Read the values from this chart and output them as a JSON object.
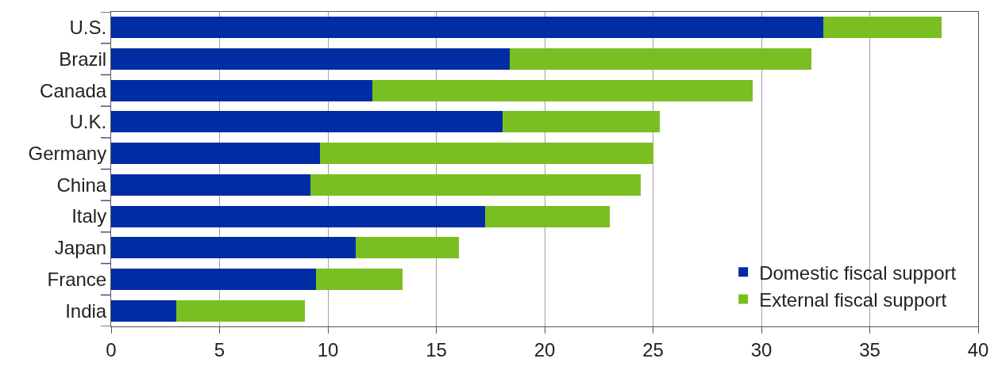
{
  "chart_data": {
    "type": "bar",
    "orientation": "horizontal",
    "stacked": true,
    "categories": [
      "U.S.",
      "Brazil",
      "Canada",
      "U.K.",
      "Germany",
      "China",
      "Italy",
      "Japan",
      "France",
      "India"
    ],
    "series": [
      {
        "name": "Domestic fiscal support",
        "color": "#002ca4",
        "values": [
          32.85,
          18.4,
          12.05,
          18.05,
          9.65,
          9.2,
          17.25,
          11.3,
          9.45,
          3.0
        ]
      },
      {
        "name": "External fiscal support",
        "color": "#79bf21",
        "values": [
          5.45,
          13.9,
          17.55,
          7.25,
          15.35,
          15.25,
          5.75,
          4.75,
          4.0,
          5.95
        ]
      }
    ],
    "xlim": [
      0,
      40
    ],
    "xticks": [
      0,
      5,
      10,
      15,
      20,
      25,
      30,
      35,
      40
    ],
    "grid": "x",
    "legend": "bottom right"
  }
}
